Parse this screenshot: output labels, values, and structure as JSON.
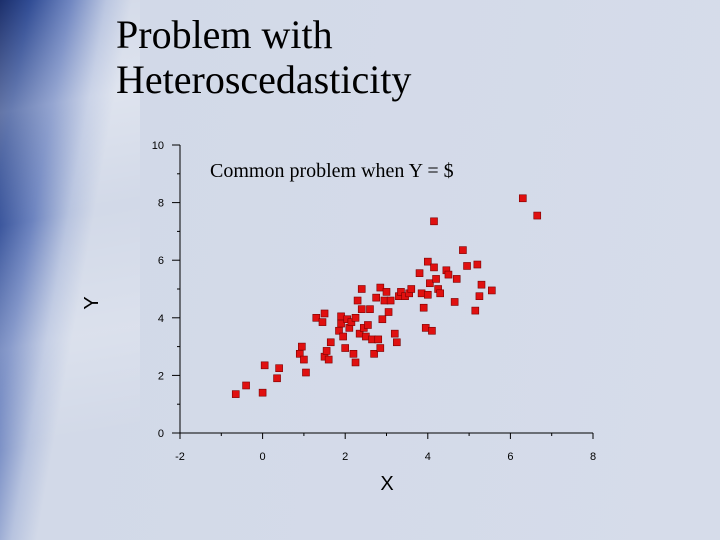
{
  "slide": {
    "title_line1": "Problem with",
    "title_line2": "Heteroscedasticity",
    "annotation": "Common problem when Y = $"
  },
  "colors": {
    "point_fill": "#e01010",
    "axis": "#000000"
  },
  "chart_data": {
    "type": "scatter",
    "title": "",
    "xlabel": "X",
    "ylabel": "Y",
    "xlim": [
      -2,
      8
    ],
    "ylim": [
      0,
      10
    ],
    "xticks": [
      -2,
      0,
      2,
      4,
      6,
      8
    ],
    "yticks": [
      0,
      2,
      4,
      6,
      8,
      10
    ],
    "grid": false,
    "points": [
      [
        -0.65,
        1.35
      ],
      [
        -0.4,
        1.65
      ],
      [
        0.0,
        1.4
      ],
      [
        0.05,
        2.35
      ],
      [
        0.35,
        1.9
      ],
      [
        0.4,
        2.25
      ],
      [
        0.9,
        2.75
      ],
      [
        0.95,
        3.0
      ],
      [
        1.0,
        2.55
      ],
      [
        1.05,
        2.1
      ],
      [
        1.3,
        4.0
      ],
      [
        1.45,
        3.85
      ],
      [
        1.5,
        4.15
      ],
      [
        1.5,
        2.65
      ],
      [
        1.55,
        2.85
      ],
      [
        1.65,
        3.15
      ],
      [
        1.6,
        2.55
      ],
      [
        1.85,
        3.55
      ],
      [
        1.9,
        3.8
      ],
      [
        1.9,
        4.05
      ],
      [
        1.95,
        3.35
      ],
      [
        2.0,
        2.95
      ],
      [
        2.05,
        3.95
      ],
      [
        2.1,
        3.65
      ],
      [
        2.15,
        3.85
      ],
      [
        2.2,
        2.75
      ],
      [
        2.25,
        2.45
      ],
      [
        2.25,
        4.0
      ],
      [
        2.3,
        4.6
      ],
      [
        2.35,
        3.45
      ],
      [
        2.4,
        4.3
      ],
      [
        2.4,
        5.0
      ],
      [
        2.45,
        3.65
      ],
      [
        2.5,
        3.35
      ],
      [
        2.55,
        3.75
      ],
      [
        2.6,
        4.3
      ],
      [
        2.65,
        3.25
      ],
      [
        2.7,
        2.75
      ],
      [
        2.75,
        4.7
      ],
      [
        2.8,
        3.25
      ],
      [
        2.85,
        5.05
      ],
      [
        2.85,
        2.95
      ],
      [
        2.9,
        3.95
      ],
      [
        2.95,
        4.6
      ],
      [
        3.0,
        4.9
      ],
      [
        3.05,
        4.2
      ],
      [
        3.1,
        4.6
      ],
      [
        3.2,
        3.45
      ],
      [
        3.25,
        3.15
      ],
      [
        3.3,
        4.75
      ],
      [
        3.35,
        4.9
      ],
      [
        3.45,
        4.75
      ],
      [
        3.55,
        4.85
      ],
      [
        3.6,
        5.0
      ],
      [
        3.8,
        5.55
      ],
      [
        3.85,
        4.85
      ],
      [
        3.9,
        4.35
      ],
      [
        3.95,
        3.65
      ],
      [
        4.0,
        5.95
      ],
      [
        4.0,
        4.8
      ],
      [
        4.05,
        5.2
      ],
      [
        4.1,
        3.55
      ],
      [
        4.15,
        7.35
      ],
      [
        4.15,
        5.75
      ],
      [
        4.2,
        5.35
      ],
      [
        4.25,
        5.0
      ],
      [
        4.3,
        4.85
      ],
      [
        4.45,
        5.65
      ],
      [
        4.5,
        5.5
      ],
      [
        4.65,
        4.55
      ],
      [
        4.7,
        5.35
      ],
      [
        4.85,
        6.35
      ],
      [
        4.95,
        5.8
      ],
      [
        5.15,
        4.25
      ],
      [
        5.2,
        5.85
      ],
      [
        5.25,
        4.75
      ],
      [
        5.3,
        5.15
      ],
      [
        5.55,
        4.95
      ],
      [
        6.3,
        8.15
      ],
      [
        6.65,
        7.55
      ]
    ]
  }
}
